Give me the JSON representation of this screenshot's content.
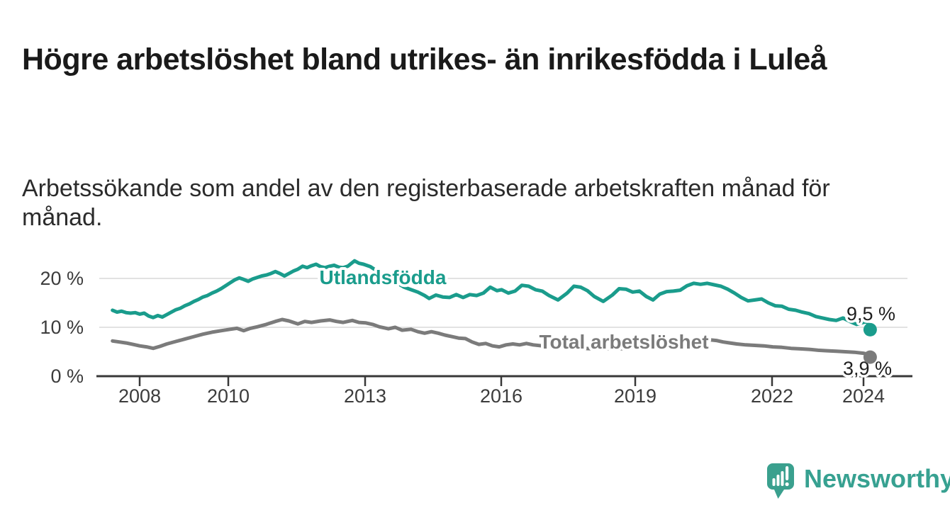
{
  "header": {
    "title": "Högre arbetslöshet bland utrikes- än inrikesfödda i Luleå",
    "subtitle": "Arbetssökande som andel av den registerbaserade arbetskraften månad för månad."
  },
  "chart_data": {
    "type": "line",
    "x_axis": {
      "ticks": [
        "2008",
        "2010",
        "2013",
        "2016",
        "2019",
        "2022",
        "2024"
      ],
      "tick_years": [
        2008,
        2010,
        2013,
        2016,
        2019,
        2022,
        2024
      ],
      "range_years": [
        2007.4,
        2024.2
      ]
    },
    "y_axis": {
      "ticks": [
        "20 %",
        "10 %",
        "0 %"
      ],
      "tick_values": [
        20,
        10,
        0
      ],
      "unit": "%",
      "range": [
        0,
        25
      ],
      "gridlines": true
    },
    "legend_position": "inline-labels",
    "series": [
      {
        "name": "Utlandsfödda",
        "color": "#1a9c8c",
        "end_value": 9.5,
        "end_label": "9,5 %",
        "points": [
          [
            2007.4,
            13.5
          ],
          [
            2007.5,
            13.1
          ],
          [
            2007.6,
            13.3
          ],
          [
            2007.7,
            13.0
          ],
          [
            2007.8,
            12.9
          ],
          [
            2007.9,
            13.0
          ],
          [
            2008.0,
            12.7
          ],
          [
            2008.1,
            12.9
          ],
          [
            2008.2,
            12.3
          ],
          [
            2008.3,
            12.0
          ],
          [
            2008.4,
            12.4
          ],
          [
            2008.5,
            12.1
          ],
          [
            2008.6,
            12.6
          ],
          [
            2008.7,
            13.1
          ],
          [
            2008.8,
            13.6
          ],
          [
            2008.9,
            13.9
          ],
          [
            2009.0,
            14.4
          ],
          [
            2009.1,
            14.8
          ],
          [
            2009.2,
            15.3
          ],
          [
            2009.3,
            15.7
          ],
          [
            2009.4,
            16.2
          ],
          [
            2009.5,
            16.5
          ],
          [
            2009.6,
            17.0
          ],
          [
            2009.7,
            17.4
          ],
          [
            2009.8,
            17.9
          ],
          [
            2009.9,
            18.5
          ],
          [
            2010.0,
            19.1
          ],
          [
            2010.1,
            19.7
          ],
          [
            2010.2,
            20.1
          ],
          [
            2010.3,
            19.8
          ],
          [
            2010.4,
            19.4
          ],
          [
            2010.5,
            19.9
          ],
          [
            2010.6,
            20.2
          ],
          [
            2010.7,
            20.5
          ],
          [
            2010.8,
            20.7
          ],
          [
            2010.9,
            21.0
          ],
          [
            2011.0,
            21.4
          ],
          [
            2011.1,
            21.0
          ],
          [
            2011.2,
            20.5
          ],
          [
            2011.3,
            21.0
          ],
          [
            2011.4,
            21.5
          ],
          [
            2011.5,
            21.9
          ],
          [
            2011.6,
            22.5
          ],
          [
            2011.7,
            22.2
          ],
          [
            2011.8,
            22.6
          ],
          [
            2011.9,
            22.9
          ],
          [
            2012.0,
            22.4
          ],
          [
            2012.1,
            22.2
          ],
          [
            2012.2,
            22.5
          ],
          [
            2012.3,
            22.7
          ],
          [
            2012.4,
            22.3
          ],
          [
            2012.5,
            22.2
          ],
          [
            2012.6,
            22.5
          ],
          [
            2012.75,
            23.6
          ],
          [
            2012.85,
            23.1
          ],
          [
            2012.95,
            22.9
          ],
          [
            2013.1,
            22.4
          ],
          [
            2013.3,
            21.2
          ],
          [
            2013.5,
            20.1
          ],
          [
            2013.7,
            19.0
          ],
          [
            2013.85,
            18.2
          ],
          [
            2014.0,
            17.7
          ],
          [
            2014.15,
            17.2
          ],
          [
            2014.3,
            16.5
          ],
          [
            2014.4,
            15.9
          ],
          [
            2014.55,
            16.6
          ],
          [
            2014.7,
            16.2
          ],
          [
            2014.85,
            16.1
          ],
          [
            2015.0,
            16.7
          ],
          [
            2015.15,
            16.1
          ],
          [
            2015.3,
            16.7
          ],
          [
            2015.45,
            16.5
          ],
          [
            2015.6,
            17.0
          ],
          [
            2015.75,
            18.2
          ],
          [
            2015.9,
            17.5
          ],
          [
            2016.0,
            17.7
          ],
          [
            2016.15,
            17.0
          ],
          [
            2016.3,
            17.4
          ],
          [
            2016.45,
            18.6
          ],
          [
            2016.6,
            18.4
          ],
          [
            2016.75,
            17.7
          ],
          [
            2016.9,
            17.4
          ],
          [
            2017.05,
            16.5
          ],
          [
            2017.25,
            15.6
          ],
          [
            2017.45,
            17.0
          ],
          [
            2017.6,
            18.4
          ],
          [
            2017.75,
            18.2
          ],
          [
            2017.9,
            17.5
          ],
          [
            2018.05,
            16.3
          ],
          [
            2018.25,
            15.3
          ],
          [
            2018.45,
            16.6
          ],
          [
            2018.6,
            17.9
          ],
          [
            2018.75,
            17.8
          ],
          [
            2018.9,
            17.2
          ],
          [
            2019.05,
            17.4
          ],
          [
            2019.2,
            16.3
          ],
          [
            2019.35,
            15.6
          ],
          [
            2019.5,
            16.8
          ],
          [
            2019.65,
            17.3
          ],
          [
            2019.8,
            17.4
          ],
          [
            2019.95,
            17.6
          ],
          [
            2020.1,
            18.5
          ],
          [
            2020.25,
            19.0
          ],
          [
            2020.4,
            18.8
          ],
          [
            2020.55,
            19.0
          ],
          [
            2020.7,
            18.7
          ],
          [
            2020.85,
            18.4
          ],
          [
            2021.0,
            17.8
          ],
          [
            2021.15,
            17.0
          ],
          [
            2021.3,
            16.1
          ],
          [
            2021.45,
            15.4
          ],
          [
            2021.6,
            15.6
          ],
          [
            2021.75,
            15.8
          ],
          [
            2021.9,
            15.0
          ],
          [
            2022.05,
            14.4
          ],
          [
            2022.2,
            14.3
          ],
          [
            2022.35,
            13.7
          ],
          [
            2022.5,
            13.5
          ],
          [
            2022.65,
            13.1
          ],
          [
            2022.8,
            12.8
          ],
          [
            2022.95,
            12.2
          ],
          [
            2023.1,
            11.9
          ],
          [
            2023.25,
            11.6
          ],
          [
            2023.4,
            11.4
          ],
          [
            2023.55,
            11.9
          ],
          [
            2023.7,
            11.2
          ],
          [
            2023.85,
            10.6
          ],
          [
            2024.0,
            11.0
          ],
          [
            2024.08,
            11.2
          ],
          [
            2024.15,
            9.5
          ]
        ]
      },
      {
        "name": "Total arbetslöshet",
        "color": "#7b7b7b",
        "end_value": 3.9,
        "end_label": "3,9 %",
        "points": [
          [
            2007.4,
            7.2
          ],
          [
            2007.55,
            7.0
          ],
          [
            2007.7,
            6.8
          ],
          [
            2007.85,
            6.5
          ],
          [
            2008.0,
            6.2
          ],
          [
            2008.15,
            6.0
          ],
          [
            2008.3,
            5.7
          ],
          [
            2008.45,
            6.1
          ],
          [
            2008.6,
            6.6
          ],
          [
            2008.8,
            7.1
          ],
          [
            2009.0,
            7.6
          ],
          [
            2009.2,
            8.1
          ],
          [
            2009.4,
            8.6
          ],
          [
            2009.6,
            9.0
          ],
          [
            2009.8,
            9.3
          ],
          [
            2010.0,
            9.6
          ],
          [
            2010.15,
            9.8
          ],
          [
            2010.3,
            9.3
          ],
          [
            2010.45,
            9.8
          ],
          [
            2010.6,
            10.1
          ],
          [
            2010.8,
            10.6
          ],
          [
            2011.0,
            11.2
          ],
          [
            2011.15,
            11.6
          ],
          [
            2011.3,
            11.3
          ],
          [
            2011.5,
            10.7
          ],
          [
            2011.65,
            11.2
          ],
          [
            2011.8,
            11.0
          ],
          [
            2012.0,
            11.3
          ],
          [
            2012.2,
            11.5
          ],
          [
            2012.35,
            11.2
          ],
          [
            2012.5,
            11.0
          ],
          [
            2012.7,
            11.4
          ],
          [
            2012.85,
            11.0
          ],
          [
            2013.0,
            10.9
          ],
          [
            2013.15,
            10.6
          ],
          [
            2013.3,
            10.1
          ],
          [
            2013.5,
            9.7
          ],
          [
            2013.65,
            10.0
          ],
          [
            2013.8,
            9.4
          ],
          [
            2014.0,
            9.6
          ],
          [
            2014.15,
            9.1
          ],
          [
            2014.3,
            8.8
          ],
          [
            2014.45,
            9.1
          ],
          [
            2014.6,
            8.8
          ],
          [
            2014.75,
            8.4
          ],
          [
            2014.9,
            8.1
          ],
          [
            2015.05,
            7.8
          ],
          [
            2015.2,
            7.7
          ],
          [
            2015.35,
            7.0
          ],
          [
            2015.5,
            6.5
          ],
          [
            2015.65,
            6.7
          ],
          [
            2015.8,
            6.2
          ],
          [
            2015.95,
            6.0
          ],
          [
            2016.1,
            6.4
          ],
          [
            2016.25,
            6.6
          ],
          [
            2016.4,
            6.4
          ],
          [
            2016.55,
            6.7
          ],
          [
            2016.7,
            6.4
          ],
          [
            2016.9,
            6.2
          ],
          [
            2017.1,
            6.0
          ],
          [
            2017.3,
            5.9
          ],
          [
            2017.55,
            5.8
          ],
          [
            2017.8,
            5.7
          ],
          [
            2018.05,
            5.6
          ],
          [
            2018.3,
            5.6
          ],
          [
            2018.55,
            5.6
          ],
          [
            2018.8,
            5.7
          ],
          [
            2019.0,
            5.8
          ],
          [
            2019.25,
            5.9
          ],
          [
            2019.5,
            6.0
          ],
          [
            2019.75,
            6.1
          ],
          [
            2019.95,
            6.3
          ],
          [
            2020.15,
            7.0
          ],
          [
            2020.35,
            7.4
          ],
          [
            2020.55,
            7.5
          ],
          [
            2020.75,
            7.3
          ],
          [
            2020.9,
            7.0
          ],
          [
            2021.05,
            6.8
          ],
          [
            2021.2,
            6.6
          ],
          [
            2021.4,
            6.4
          ],
          [
            2021.6,
            6.3
          ],
          [
            2021.8,
            6.2
          ],
          [
            2022.0,
            6.0
          ],
          [
            2022.2,
            5.9
          ],
          [
            2022.4,
            5.7
          ],
          [
            2022.6,
            5.6
          ],
          [
            2022.8,
            5.5
          ],
          [
            2023.0,
            5.3
          ],
          [
            2023.2,
            5.2
          ],
          [
            2023.4,
            5.1
          ],
          [
            2023.6,
            5.0
          ],
          [
            2023.8,
            4.9
          ],
          [
            2024.0,
            4.7
          ],
          [
            2024.08,
            4.5
          ],
          [
            2024.15,
            3.9
          ]
        ]
      }
    ]
  },
  "footer": {
    "brand": "Newsworthy"
  }
}
